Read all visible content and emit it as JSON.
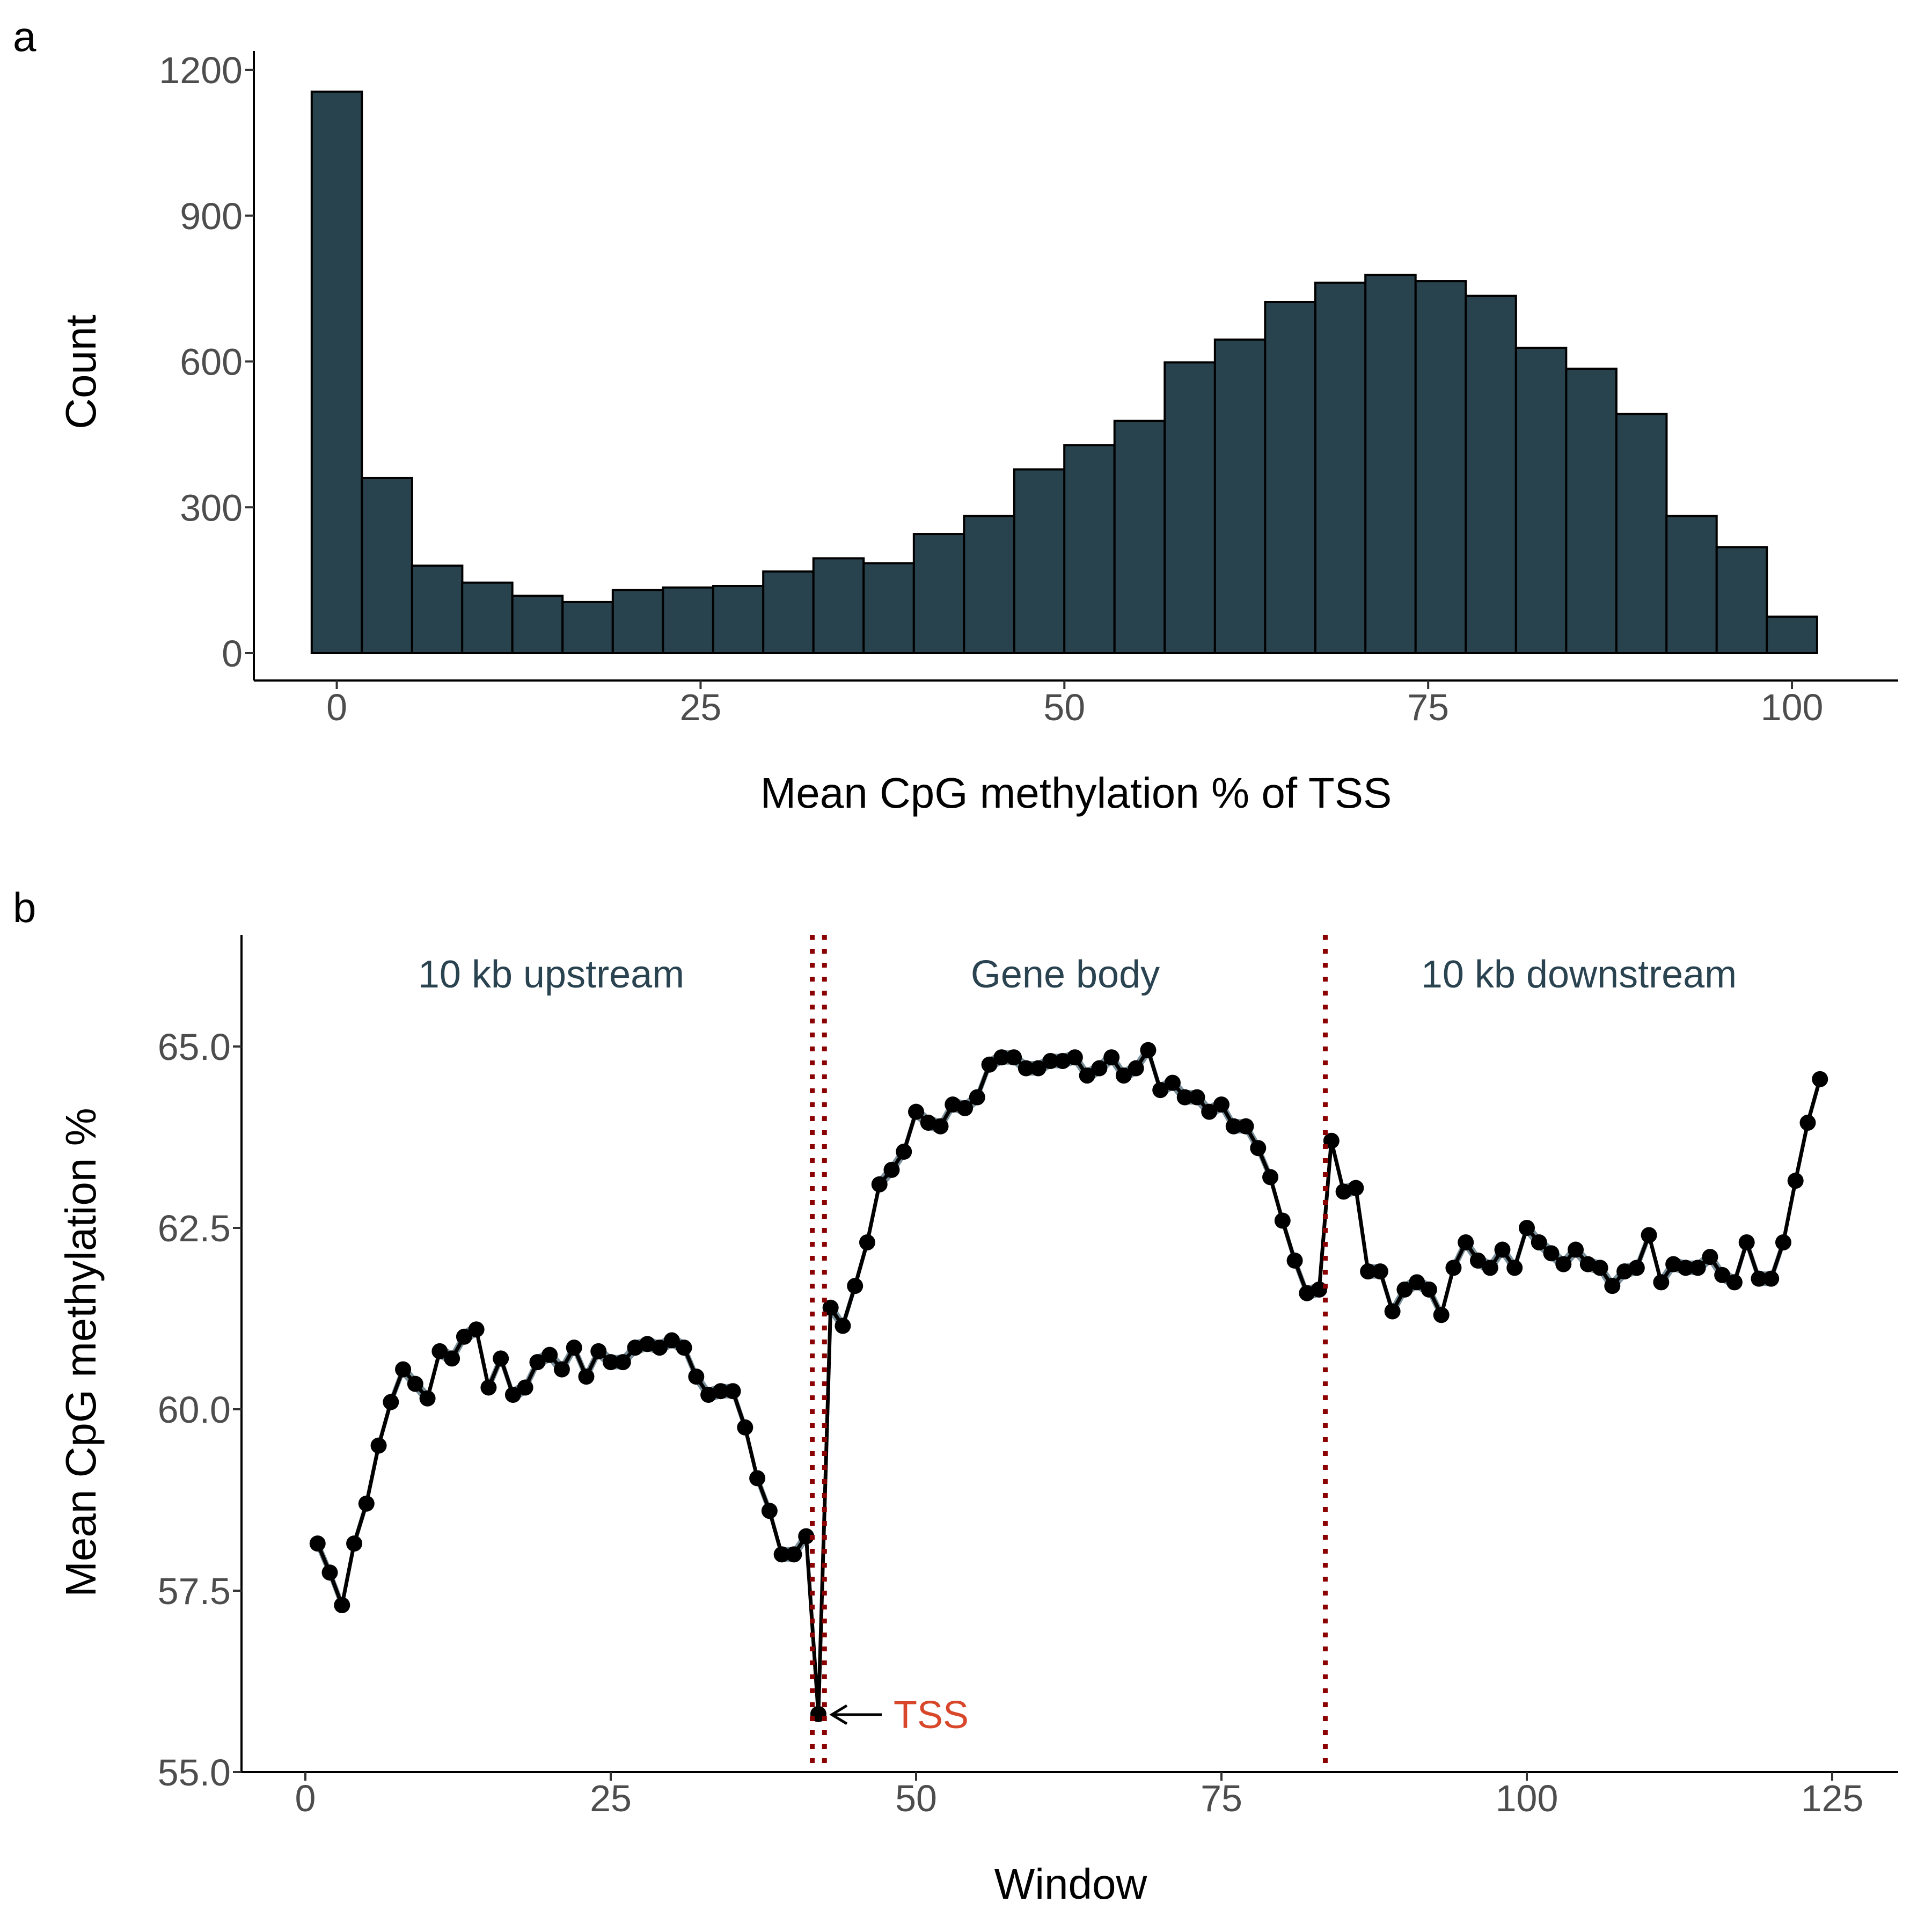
{
  "colors": {
    "bar_fill": "#29434e",
    "bar_stroke": "#000000",
    "ribbon": "#7a8f99",
    "line": "#000000",
    "boundary": "#8b0000",
    "region_text": "#2a4350",
    "tss_text": "#d9472b"
  },
  "chart_data": [
    {
      "panel": "a",
      "type": "bar",
      "title": "",
      "xlabel": "Mean CpG methylation % of TSS",
      "ylabel": "Count",
      "xlim": [
        -5.7,
        107.3
      ],
      "ylim": [
        -57,
        1200
      ],
      "xticks": [
        0,
        25,
        50,
        75,
        100
      ],
      "xtick_labels": [
        "0",
        "25",
        "50",
        "75",
        "100"
      ],
      "yticks": [
        0,
        300,
        600,
        900,
        1200
      ],
      "ytick_labels": [
        "0",
        "300",
        "600",
        "900",
        "1200"
      ],
      "bin_width": 3.448,
      "bin_centers": [
        0,
        3.45,
        6.9,
        10.34,
        13.79,
        17.24,
        20.69,
        24.14,
        27.59,
        31.03,
        34.48,
        37.93,
        41.38,
        44.83,
        48.28,
        51.72,
        55.17,
        58.62,
        62.07,
        65.52,
        68.97,
        72.41,
        75.86,
        79.31,
        82.76,
        86.21,
        89.66,
        93.1,
        96.55,
        100
      ],
      "values": [
        1155,
        360,
        180,
        145,
        118,
        105,
        130,
        135,
        138,
        168,
        195,
        185,
        245,
        282,
        378,
        428,
        478,
        598,
        645,
        722,
        762,
        778,
        765,
        735,
        628,
        585,
        492,
        282,
        218,
        75
      ],
      "grid": false,
      "legend": "none"
    },
    {
      "panel": "b",
      "type": "line",
      "title": "",
      "xlabel": "Window",
      "ylabel": "Mean CpG methylation %",
      "xlim": [
        -5.2,
        130.2
      ],
      "ylim": [
        55,
        66.5
      ],
      "xticks": [
        0,
        25,
        50,
        75,
        100,
        125
      ],
      "xtick_labels": [
        "0",
        "25",
        "50",
        "75",
        "100",
        "125"
      ],
      "yticks": [
        55,
        57.5,
        60,
        62.5,
        65
      ],
      "ytick_labels": [
        "55.0",
        "57.5",
        "60.0",
        "62.5",
        "65.0"
      ],
      "x": [
        1,
        2,
        3,
        4,
        5,
        6,
        7,
        8,
        9,
        10,
        11,
        12,
        13,
        14,
        15,
        16,
        17,
        18,
        19,
        20,
        21,
        22,
        23,
        24,
        25,
        26,
        27,
        28,
        29,
        30,
        31,
        32,
        33,
        34,
        35,
        36,
        37,
        38,
        39,
        40,
        41,
        42,
        43,
        44,
        45,
        46,
        47,
        48,
        49,
        50,
        51,
        52,
        53,
        54,
        55,
        56,
        57,
        58,
        59,
        60,
        61,
        62,
        63,
        64,
        65,
        66,
        67,
        68,
        69,
        70,
        71,
        72,
        73,
        74,
        75,
        76,
        77,
        78,
        79,
        80,
        81,
        82,
        83,
        84,
        85,
        86,
        87,
        88,
        89,
        90,
        91,
        92,
        93,
        94,
        95,
        96,
        97,
        98,
        99,
        100,
        101,
        102,
        103,
        104,
        105,
        106,
        107,
        108,
        109,
        110,
        111,
        112,
        113,
        114,
        115,
        116,
        117,
        118,
        119,
        120,
        121,
        122,
        123,
        124
      ],
      "y": [
        58.15,
        57.75,
        57.3,
        58.15,
        58.7,
        59.5,
        60.1,
        60.55,
        60.35,
        60.15,
        60.8,
        60.7,
        61.0,
        61.1,
        60.3,
        60.7,
        60.2,
        60.3,
        60.65,
        60.75,
        60.55,
        60.85,
        60.45,
        60.8,
        60.65,
        60.65,
        60.85,
        60.9,
        60.85,
        60.95,
        60.85,
        60.45,
        60.2,
        60.25,
        60.25,
        59.75,
        59.05,
        58.6,
        58.0,
        58.0,
        58.25,
        55.8,
        61.4,
        61.15,
        61.7,
        62.3,
        63.1,
        63.3,
        63.55,
        64.1,
        63.95,
        63.9,
        64.2,
        64.15,
        64.3,
        64.75,
        64.85,
        64.85,
        64.7,
        64.7,
        64.8,
        64.8,
        64.85,
        64.6,
        64.7,
        64.85,
        64.6,
        64.7,
        64.95,
        64.4,
        64.5,
        64.3,
        64.3,
        64.1,
        64.2,
        63.9,
        63.9,
        63.6,
        63.2,
        62.6,
        62.05,
        61.6,
        61.65,
        63.7,
        63.0,
        63.05,
        61.9,
        61.9,
        61.35,
        61.65,
        61.75,
        61.65,
        61.3,
        61.95,
        62.3,
        62.05,
        61.95,
        62.2,
        61.95,
        62.5,
        62.3,
        62.15,
        62.0,
        62.2,
        62.0,
        61.95,
        61.7,
        61.9,
        61.95,
        62.4,
        61.75,
        62.0,
        61.95,
        61.95,
        62.1,
        61.85,
        61.75,
        62.3,
        61.8,
        61.8,
        62.3,
        63.15,
        63.95,
        64.55
      ],
      "ribbon_halfwidth": 0.1,
      "boundaries": [
        41.5,
        42.5,
        83.5
      ],
      "region_labels": [
        "10 kb upstream",
        "Gene body",
        "10 kb downstream"
      ],
      "annotation": {
        "text": "TSS",
        "x": 42,
        "y": 55.8
      },
      "grid": false,
      "legend": "none"
    }
  ]
}
